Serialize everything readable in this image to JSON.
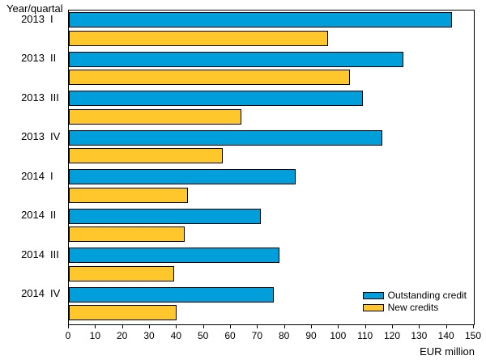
{
  "chart_data": {
    "type": "bar",
    "orientation": "horizontal",
    "title": "",
    "ylabel": "Year/quartal",
    "xlabel": "EUR million",
    "xlim": [
      0,
      150
    ],
    "xticks": [
      0,
      10,
      20,
      30,
      40,
      50,
      60,
      70,
      80,
      90,
      100,
      110,
      120,
      130,
      140,
      150
    ],
    "grid": false,
    "legend_position": "bottom-right",
    "categories": [
      {
        "year": "2013",
        "quarter": "I"
      },
      {
        "year": "2013",
        "quarter": "II"
      },
      {
        "year": "2013",
        "quarter": "III"
      },
      {
        "year": "2013",
        "quarter": "IV"
      },
      {
        "year": "2014",
        "quarter": "I"
      },
      {
        "year": "2014",
        "quarter": "II"
      },
      {
        "year": "2014",
        "quarter": "III"
      },
      {
        "year": "2014",
        "quarter": "IV"
      }
    ],
    "series": [
      {
        "name": "Outstanding credit",
        "color": "#009EDA",
        "values": [
          142,
          124,
          109,
          116,
          84,
          71,
          78,
          76
        ]
      },
      {
        "name": "New credits",
        "color": "#FFC72C",
        "values": [
          96,
          104,
          64,
          57,
          44,
          43,
          39,
          40
        ]
      }
    ]
  }
}
